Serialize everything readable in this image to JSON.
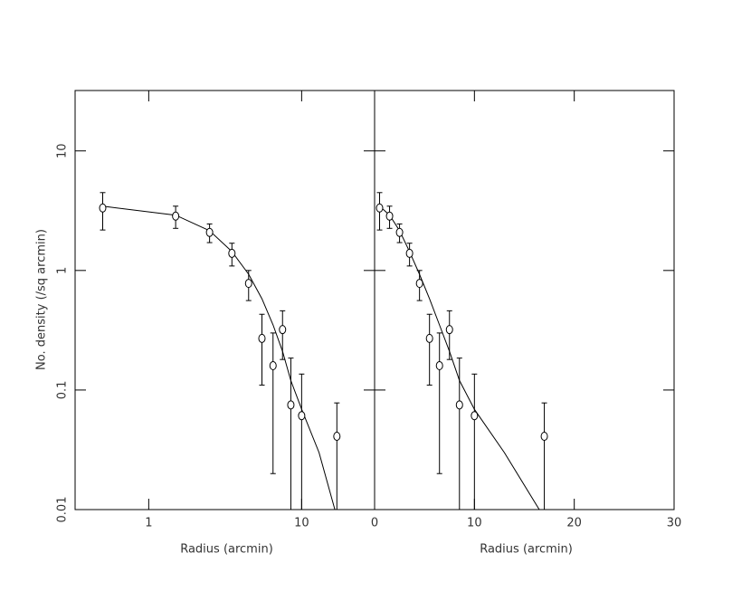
{
  "chart_data": [
    {
      "type": "scatter",
      "ylabel": "No. density (/sq arcmin)",
      "xlabel": "Radius (arcmin)",
      "xlog": true,
      "ylog": true,
      "color": "#000000",
      "xlim": [
        0.33,
        30
      ],
      "xticks": [
        1,
        10
      ],
      "ylim": [
        0.01,
        32
      ],
      "yticks": [
        0.01,
        0.1,
        1,
        10
      ],
      "x": [
        0.5,
        1.5,
        2.5,
        3.5,
        4.5,
        5.5,
        6.5,
        7.5,
        8.5,
        10,
        17
      ],
      "values": [
        3.33,
        2.85,
        2.08,
        1.39,
        0.78,
        0.27,
        0.16,
        0.32,
        0.075,
        0.061,
        0.041
      ],
      "errors": [
        1.15,
        0.6,
        0.37,
        0.3,
        0.22,
        0.16,
        0.14,
        0.14,
        0.11,
        0.075,
        0.037
      ],
      "model": {
        "x": [
          0.5,
          1.5,
          2.5,
          3.5,
          4.5,
          5.5,
          6.5,
          7.5,
          8.5,
          10,
          13,
          16.5
        ],
        "values": [
          3.45,
          2.9,
          2.15,
          1.44,
          0.93,
          0.58,
          0.35,
          0.21,
          0.12,
          0.069,
          0.03,
          0.01
        ]
      }
    },
    {
      "type": "scatter",
      "xlabel": "Radius (arcmin)",
      "xlog": false,
      "ylog": true,
      "color": "#000000",
      "xlim": [
        0,
        30
      ],
      "xticks": [
        0,
        10,
        20,
        30
      ],
      "ylim": [
        0.01,
        32
      ],
      "yticks": [
        0.01,
        0.1,
        1,
        10
      ],
      "x": [
        0.5,
        1.5,
        2.5,
        3.5,
        4.5,
        5.5,
        6.5,
        7.5,
        8.5,
        10,
        17
      ],
      "values": [
        3.33,
        2.85,
        2.08,
        1.39,
        0.78,
        0.27,
        0.16,
        0.32,
        0.075,
        0.061,
        0.041
      ],
      "errors": [
        1.15,
        0.6,
        0.37,
        0.3,
        0.22,
        0.16,
        0.14,
        0.14,
        0.11,
        0.075,
        0.037
      ],
      "model": {
        "x": [
          0.5,
          1.5,
          2.5,
          3.5,
          4.5,
          5.5,
          6.5,
          7.5,
          8.5,
          10,
          13,
          16.5
        ],
        "values": [
          3.45,
          2.9,
          2.15,
          1.44,
          0.93,
          0.58,
          0.35,
          0.21,
          0.12,
          0.069,
          0.03,
          0.01
        ]
      }
    }
  ]
}
